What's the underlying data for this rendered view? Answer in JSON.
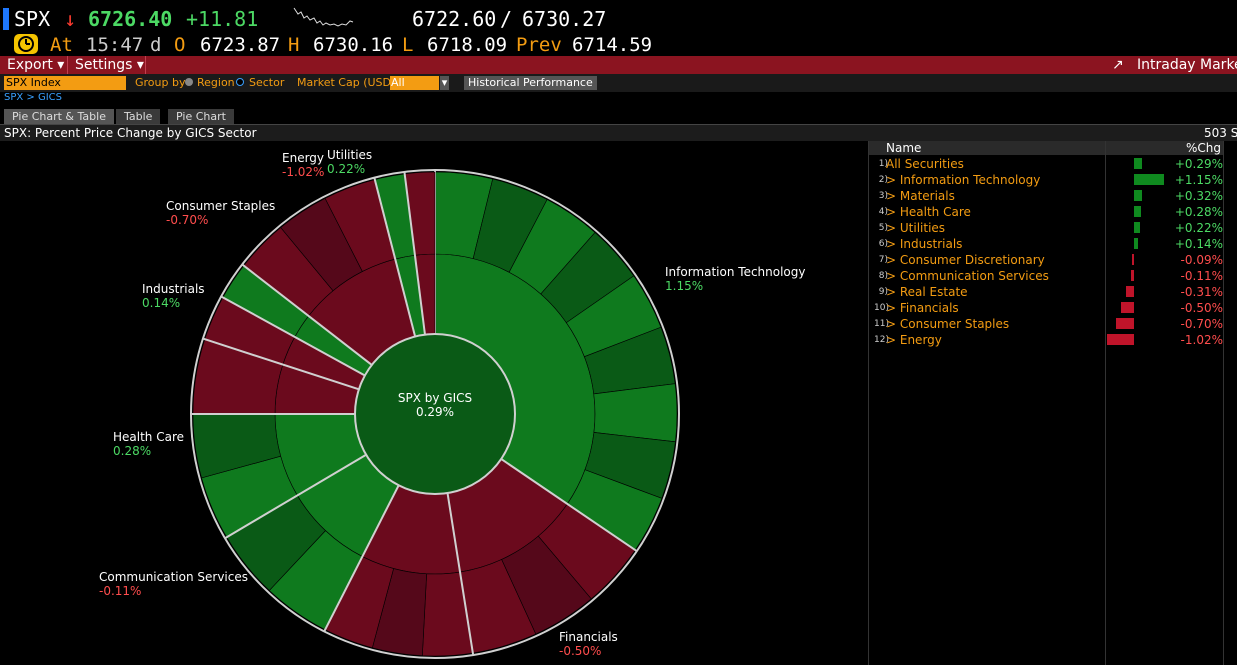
{
  "ticker": {
    "symbol": "SPX",
    "arrow": "↓",
    "last": "6726.40",
    "change": "+11.81",
    "bid": "6722.60",
    "sep": "/",
    "ask": "6730.27"
  },
  "quote": {
    "at_label": "At",
    "time": "15:47",
    "time_suffix": "d",
    "open_label": "O",
    "open": "6723.87",
    "high_label": "H",
    "high": "6730.16",
    "low_label": "L",
    "low": "6718.09",
    "prev_label": "Prev",
    "prev": "6714.59"
  },
  "menu": {
    "export": "Export ▾",
    "settings": "Settings ▾",
    "right": "Intraday Marke"
  },
  "toolbar": {
    "index_value": "SPX Index",
    "group_by": "Group by",
    "region": "Region",
    "sector": "Sector",
    "market_cap_label": "Market Cap (USD)",
    "market_cap_value": "All",
    "historical": "Historical Performance"
  },
  "breadcrumb": "SPX > GICS",
  "tabs": [
    "Pie Chart & Table",
    "Table",
    "Pie Chart"
  ],
  "title": "SPX: Percent Price Change by GICS Sector",
  "title_right": "503 S",
  "chart_data": {
    "type": "pie",
    "center_label": "SPX by GICS",
    "center_value": "0.29%",
    "colors": {
      "positive": "#0f7a1e",
      "positive_dark": "#0a5a16",
      "negative": "#6b0a1d",
      "negative_dark": "#55081a",
      "separator": "#d0d0d0"
    },
    "sectors": [
      {
        "name": "Information Technology",
        "value": "1.15%",
        "pct": 1.15,
        "weight": 34.5
      },
      {
        "name": "Financials",
        "value": "-0.50%",
        "pct": -0.5,
        "weight": 13.0
      },
      {
        "name": "Communication Services",
        "value": "-0.11%",
        "pct": -0.11,
        "weight": 10.0
      },
      {
        "name": "Health Care",
        "value": "0.28%",
        "pct": 0.28,
        "weight": 9.0
      },
      {
        "name": "Industrials",
        "value": "0.14%",
        "pct": 0.14,
        "weight": 8.5
      },
      {
        "name": "Consumer Staples",
        "value": "-0.70%",
        "pct": -0.7,
        "weight": 5.0
      },
      {
        "name": "Energy",
        "value": "-1.02%",
        "pct": -1.02,
        "weight": 3.0
      },
      {
        "name": "Utilities",
        "value": "0.22%",
        "pct": 0.22,
        "weight": 2.5
      },
      {
        "name": "Consumer Discretionary",
        "value": "-0.09%",
        "pct": -0.09,
        "weight": 10.5
      },
      {
        "name": "Materials",
        "value": "0.32%",
        "pct": 0.32,
        "weight": 2.0
      },
      {
        "name": "Real Estate",
        "value": "-0.31%",
        "pct": -0.31,
        "weight": 2.0
      }
    ],
    "labels_shown": [
      {
        "name": "Energy",
        "value": "-1.02%"
      },
      {
        "name": "Utilities",
        "value": "0.22%"
      },
      {
        "name": "Consumer Staples",
        "value": "-0.70%"
      },
      {
        "name": "Industrials",
        "value": "0.14%"
      },
      {
        "name": "Health Care",
        "value": "0.28%"
      },
      {
        "name": "Communication Services",
        "value": "-0.11%"
      },
      {
        "name": "Financials",
        "value": "-0.50%"
      },
      {
        "name": "Information Technology",
        "value": "1.15%"
      }
    ]
  },
  "table": {
    "col_name": "Name",
    "col_chg": "%Chg",
    "rows": [
      {
        "idx": "1)",
        "name": "All Securities",
        "chg": "+0.29%",
        "pct": 0.29
      },
      {
        "idx": "2)",
        "name": "> Information Technology",
        "chg": "+1.15%",
        "pct": 1.15
      },
      {
        "idx": "3)",
        "name": "> Materials",
        "chg": "+0.32%",
        "pct": 0.32
      },
      {
        "idx": "4)",
        "name": "> Health Care",
        "chg": "+0.28%",
        "pct": 0.28
      },
      {
        "idx": "5)",
        "name": "> Utilities",
        "chg": "+0.22%",
        "pct": 0.22
      },
      {
        "idx": "6)",
        "name": "> Industrials",
        "chg": "+0.14%",
        "pct": 0.14
      },
      {
        "idx": "7)",
        "name": "> Consumer Discretionary",
        "chg": "-0.09%",
        "pct": -0.09
      },
      {
        "idx": "8)",
        "name": "> Communication Services",
        "chg": "-0.11%",
        "pct": -0.11
      },
      {
        "idx": "9)",
        "name": "> Real Estate",
        "chg": "-0.31%",
        "pct": -0.31
      },
      {
        "idx": "10)",
        "name": "> Financials",
        "chg": "-0.50%",
        "pct": -0.5
      },
      {
        "idx": "11)",
        "name": "> Consumer Staples",
        "chg": "-0.70%",
        "pct": -0.7
      },
      {
        "idx": "12)",
        "name": "> Energy",
        "chg": "-1.02%",
        "pct": -1.02
      }
    ]
  }
}
